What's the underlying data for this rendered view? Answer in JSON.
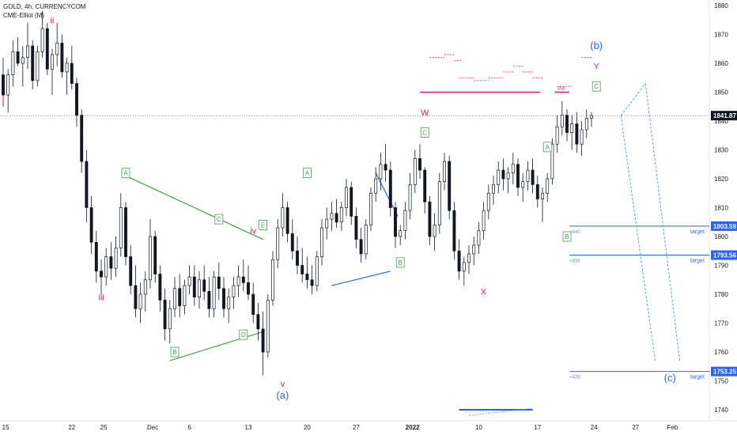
{
  "header": {
    "symbol_line": "GOLD, 4h, CURRENCYCOM",
    "indicator_line": "CME-Elliot (M)"
  },
  "colors": {
    "up": "#131722",
    "down": "#131722",
    "magenta": "#e91e63",
    "green": "#43a047",
    "blue": "#2962ff",
    "light_blue": "#5b9cf6",
    "price_tag_bg": "#131722",
    "target_tag_bg": "#2962ff"
  },
  "chart_data": {
    "type": "candlestick",
    "title": "GOLD, 4h, CURRENCYCOM",
    "x_ticks": [
      "15",
      "22",
      "25",
      "Dec",
      "6",
      "13",
      "20",
      "27",
      "2022",
      "10",
      "17",
      "24",
      "27",
      "Feb"
    ],
    "y_ticks": [
      1880,
      1870,
      1860,
      1850,
      1840,
      1830,
      1820,
      1810,
      1800,
      1790,
      1780,
      1770,
      1760,
      1750,
      1740
    ],
    "ylim": [
      1737,
      1882
    ],
    "current_price": "1841.87",
    "targets": [
      {
        "price": "1803.59",
        "label": "target",
        "note": "+840"
      },
      {
        "price": "1793.56",
        "label": "target",
        "note": "+838"
      },
      {
        "price": "1753.25",
        "label": "target",
        "note": "+439"
      }
    ],
    "misc_labels": {
      "small_358": "358"
    },
    "wave_labels": [
      {
        "text": "i",
        "color": "magenta",
        "x": 0,
        "y": 1848
      },
      {
        "text": "ii",
        "color": "magenta",
        "x": 10,
        "y": 1875
      },
      {
        "text": "iii",
        "color": "magenta",
        "x": 20,
        "y": 1779
      },
      {
        "text": "iv",
        "color": "magenta",
        "x": 51,
        "y": 1802
      },
      {
        "text": "v",
        "color": "magenta",
        "x": 57,
        "y": 1749
      },
      {
        "text": "(a)",
        "color": "blue",
        "x": 57,
        "y": 1745
      },
      {
        "text": "A",
        "color": "green",
        "boxed": true,
        "x": 25,
        "y": 1822
      },
      {
        "text": "B",
        "color": "green",
        "boxed": true,
        "x": 35,
        "y": 1760
      },
      {
        "text": "C",
        "color": "green",
        "boxed": true,
        "x": 44,
        "y": 1806
      },
      {
        "text": "D",
        "color": "green",
        "boxed": true,
        "x": 49,
        "y": 1766
      },
      {
        "text": "E",
        "color": "green",
        "boxed": true,
        "x": 53,
        "y": 1804
      },
      {
        "text": "A",
        "color": "green",
        "boxed": true,
        "x": 62,
        "y": 1822
      },
      {
        "text": "B",
        "color": "green",
        "boxed": true,
        "x": 81,
        "y": 1791
      },
      {
        "text": "C",
        "color": "green",
        "boxed": true,
        "x": 86,
        "y": 1836
      },
      {
        "text": "W",
        "color": "magenta",
        "x": 86,
        "y": 1843
      },
      {
        "text": "X",
        "color": "magenta",
        "x": 98,
        "y": 1781
      },
      {
        "text": "A",
        "color": "green",
        "boxed": true,
        "x": 111,
        "y": 1831
      },
      {
        "text": "B",
        "color": "green",
        "boxed": true,
        "x": 115,
        "y": 1800
      },
      {
        "text": "C",
        "color": "green",
        "boxed": true,
        "x": 121,
        "y": 1852
      },
      {
        "text": "Y",
        "color": "magenta",
        "x": 121,
        "y": 1859
      },
      {
        "text": "(b)",
        "color": "blue",
        "x": 121,
        "y": 1866
      },
      {
        "text": "(c)",
        "color": "blue",
        "x": 136,
        "y": 1751
      }
    ],
    "ohlc": [
      [
        1856,
        1862,
        1845,
        1849
      ],
      [
        1849,
        1858,
        1843,
        1856
      ],
      [
        1856,
        1868,
        1852,
        1864
      ],
      [
        1864,
        1869,
        1859,
        1860
      ],
      [
        1860,
        1866,
        1852,
        1862
      ],
      [
        1862,
        1874,
        1858,
        1866
      ],
      [
        1866,
        1868,
        1851,
        1854
      ],
      [
        1854,
        1866,
        1852,
        1864
      ],
      [
        1864,
        1878,
        1862,
        1872
      ],
      [
        1872,
        1874,
        1856,
        1858
      ],
      [
        1858,
        1865,
        1849,
        1863
      ],
      [
        1863,
        1874,
        1859,
        1867
      ],
      [
        1867,
        1870,
        1855,
        1857
      ],
      [
        1857,
        1862,
        1849,
        1860
      ],
      [
        1860,
        1866,
        1851,
        1853
      ],
      [
        1853,
        1855,
        1838,
        1842
      ],
      [
        1842,
        1844,
        1822,
        1826
      ],
      [
        1826,
        1830,
        1805,
        1810
      ],
      [
        1810,
        1814,
        1794,
        1798
      ],
      [
        1798,
        1802,
        1784,
        1788
      ],
      [
        1788,
        1792,
        1778,
        1786
      ],
      [
        1786,
        1796,
        1783,
        1793
      ],
      [
        1793,
        1798,
        1785,
        1789
      ],
      [
        1789,
        1800,
        1786,
        1796
      ],
      [
        1796,
        1815,
        1793,
        1810
      ],
      [
        1810,
        1812,
        1790,
        1793
      ],
      [
        1793,
        1797,
        1780,
        1783
      ],
      [
        1783,
        1790,
        1772,
        1775
      ],
      [
        1775,
        1784,
        1770,
        1780
      ],
      [
        1780,
        1788,
        1774,
        1785
      ],
      [
        1785,
        1806,
        1782,
        1800
      ],
      [
        1800,
        1802,
        1784,
        1787
      ],
      [
        1787,
        1790,
        1774,
        1778
      ],
      [
        1778,
        1782,
        1764,
        1768
      ],
      [
        1768,
        1778,
        1763,
        1775
      ],
      [
        1775,
        1786,
        1772,
        1782
      ],
      [
        1782,
        1787,
        1772,
        1776
      ],
      [
        1776,
        1785,
        1773,
        1783
      ],
      [
        1783,
        1790,
        1780,
        1786
      ],
      [
        1786,
        1790,
        1776,
        1779
      ],
      [
        1779,
        1788,
        1775,
        1785
      ],
      [
        1785,
        1790,
        1778,
        1781
      ],
      [
        1781,
        1786,
        1772,
        1775
      ],
      [
        1775,
        1788,
        1772,
        1786
      ],
      [
        1786,
        1791,
        1778,
        1782
      ],
      [
        1782,
        1786,
        1772,
        1775
      ],
      [
        1775,
        1782,
        1770,
        1779
      ],
      [
        1779,
        1786,
        1775,
        1783
      ],
      [
        1783,
        1790,
        1779,
        1786
      ],
      [
        1786,
        1792,
        1781,
        1784
      ],
      [
        1784,
        1790,
        1778,
        1780
      ],
      [
        1780,
        1784,
        1770,
        1773
      ],
      [
        1773,
        1777,
        1764,
        1768
      ],
      [
        1768,
        1774,
        1752,
        1760
      ],
      [
        1760,
        1780,
        1758,
        1778
      ],
      [
        1778,
        1795,
        1776,
        1792
      ],
      [
        1792,
        1806,
        1789,
        1803
      ],
      [
        1803,
        1815,
        1800,
        1810
      ],
      [
        1810,
        1812,
        1798,
        1801
      ],
      [
        1801,
        1806,
        1792,
        1795
      ],
      [
        1795,
        1800,
        1787,
        1790
      ],
      [
        1790,
        1796,
        1784,
        1787
      ],
      [
        1787,
        1793,
        1782,
        1785
      ],
      [
        1785,
        1790,
        1780,
        1783
      ],
      [
        1783,
        1795,
        1781,
        1793
      ],
      [
        1793,
        1806,
        1790,
        1803
      ],
      [
        1803,
        1810,
        1799,
        1806
      ],
      [
        1806,
        1812,
        1802,
        1808
      ],
      [
        1808,
        1813,
        1803,
        1805
      ],
      [
        1805,
        1812,
        1802,
        1810
      ],
      [
        1810,
        1820,
        1807,
        1817
      ],
      [
        1817,
        1819,
        1804,
        1807
      ],
      [
        1807,
        1810,
        1796,
        1799
      ],
      [
        1799,
        1803,
        1791,
        1794
      ],
      [
        1794,
        1806,
        1792,
        1804
      ],
      [
        1804,
        1817,
        1802,
        1815
      ],
      [
        1815,
        1824,
        1812,
        1820
      ],
      [
        1820,
        1829,
        1816,
        1825
      ],
      [
        1825,
        1832,
        1819,
        1823
      ],
      [
        1823,
        1826,
        1807,
        1810
      ],
      [
        1810,
        1812,
        1796,
        1800
      ],
      [
        1800,
        1804,
        1797,
        1802
      ],
      [
        1802,
        1812,
        1799,
        1809
      ],
      [
        1809,
        1822,
        1806,
        1818
      ],
      [
        1818,
        1830,
        1815,
        1827
      ],
      [
        1827,
        1832,
        1820,
        1823
      ],
      [
        1823,
        1824,
        1808,
        1812
      ],
      [
        1812,
        1814,
        1797,
        1800
      ],
      [
        1800,
        1808,
        1795,
        1804
      ],
      [
        1804,
        1822,
        1801,
        1819
      ],
      [
        1819,
        1829,
        1816,
        1826
      ],
      [
        1826,
        1828,
        1806,
        1809
      ],
      [
        1809,
        1812,
        1792,
        1795
      ],
      [
        1795,
        1799,
        1785,
        1788
      ],
      [
        1788,
        1793,
        1783,
        1791
      ],
      [
        1791,
        1797,
        1787,
        1794
      ],
      [
        1794,
        1800,
        1790,
        1797
      ],
      [
        1797,
        1805,
        1794,
        1802
      ],
      [
        1802,
        1812,
        1799,
        1809
      ],
      [
        1809,
        1818,
        1806,
        1815
      ],
      [
        1815,
        1821,
        1811,
        1818
      ],
      [
        1818,
        1826,
        1815,
        1823
      ],
      [
        1823,
        1827,
        1816,
        1820
      ],
      [
        1820,
        1824,
        1815,
        1822
      ],
      [
        1822,
        1829,
        1818,
        1825
      ],
      [
        1825,
        1827,
        1814,
        1817
      ],
      [
        1817,
        1822,
        1812,
        1819
      ],
      [
        1819,
        1826,
        1816,
        1823
      ],
      [
        1823,
        1827,
        1815,
        1818
      ],
      [
        1818,
        1821,
        1810,
        1813
      ],
      [
        1813,
        1817,
        1805,
        1815
      ],
      [
        1815,
        1822,
        1812,
        1820
      ],
      [
        1820,
        1834,
        1818,
        1832
      ],
      [
        1832,
        1842,
        1829,
        1838
      ],
      [
        1838,
        1847,
        1835,
        1842
      ],
      [
        1842,
        1844,
        1833,
        1836
      ],
      [
        1836,
        1842,
        1830,
        1839
      ],
      [
        1839,
        1843,
        1829,
        1832
      ],
      [
        1832,
        1840,
        1828,
        1837
      ],
      [
        1837,
        1844,
        1834,
        1841
      ],
      [
        1841,
        1843,
        1838,
        1841.87
      ]
    ]
  }
}
